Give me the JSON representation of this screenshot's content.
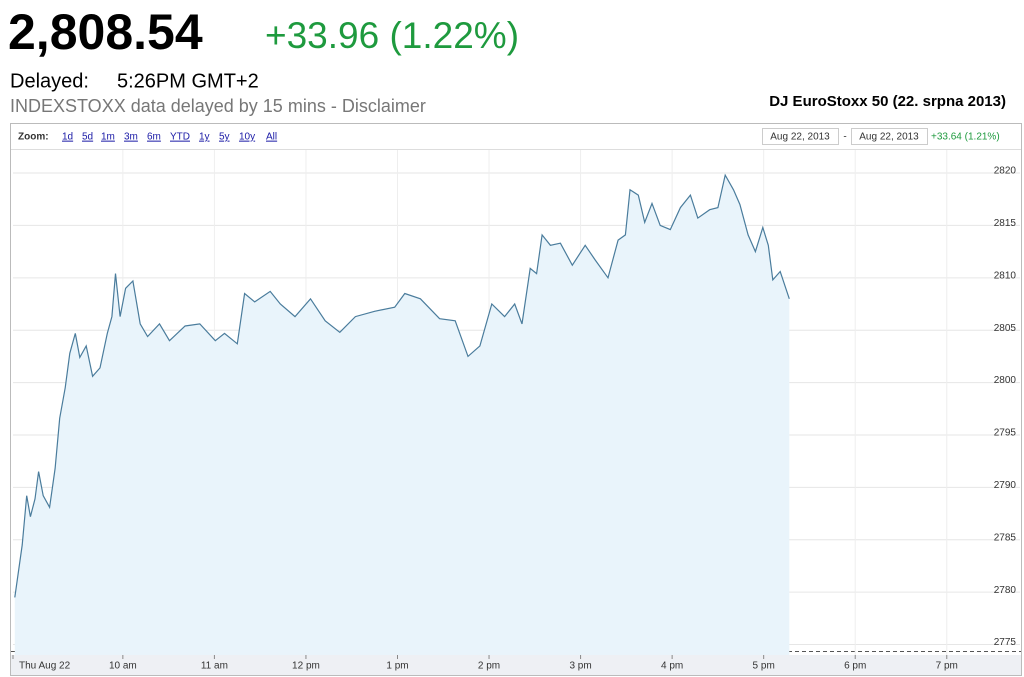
{
  "header": {
    "price": "2,808.54",
    "change": "+33.96 (1.22%)",
    "delayed_label": "Delayed:",
    "delayed_time": "5:26PM GMT+2",
    "note": "INDEXSTOXX data delayed by 15 mins - Disclaimer"
  },
  "toolbar": {
    "zoom_label": "Zoom:",
    "zoom_options": [
      "1d",
      "5d",
      "1m",
      "3m",
      "6m",
      "YTD",
      "1y",
      "5y",
      "10y",
      "All"
    ],
    "range_from": "Aug 22, 2013",
    "range_separator": "-",
    "range_to": "Aug 22, 2013",
    "range_change": "+33.64 (1.21%)"
  },
  "chart_data": {
    "type": "area",
    "title": "DJ EuroStoxx 50 (22. srpna 2013)",
    "color": "#4a7c9c",
    "fill": "#e9f4fb",
    "x": [
      8.82,
      8.9,
      8.95,
      8.99,
      9.04,
      9.08,
      9.13,
      9.2,
      9.26,
      9.31,
      9.37,
      9.42,
      9.48,
      9.53,
      9.6,
      9.67,
      9.75,
      9.83,
      9.88,
      9.92,
      9.97,
      10.03,
      10.11,
      10.19,
      10.27,
      10.4,
      10.51,
      10.68,
      10.84,
      11.01,
      11.11,
      11.25,
      11.33,
      11.44,
      11.61,
      11.72,
      11.88,
      12.05,
      12.21,
      12.37,
      12.54,
      12.75,
      12.97,
      13.08,
      13.25,
      13.46,
      13.63,
      13.77,
      13.9,
      14.03,
      14.17,
      14.28,
      14.36,
      14.45,
      14.52,
      14.58,
      14.67,
      14.78,
      14.91,
      15.05,
      15.16,
      15.3,
      15.41,
      15.49,
      15.54,
      15.63,
      15.7,
      15.78,
      15.87,
      15.98,
      16.09,
      16.2,
      16.28,
      16.41,
      16.5,
      16.58,
      16.67,
      16.74,
      16.83,
      16.91,
      16.99,
      17.05,
      17.1,
      17.18,
      17.28
    ],
    "values": [
      2779.5,
      2784.5,
      2789.2,
      2787.2,
      2788.9,
      2791.5,
      2789.2,
      2788.1,
      2791.8,
      2796.6,
      2799.5,
      2802.8,
      2804.7,
      2802.4,
      2803.5,
      2800.6,
      2801.4,
      2804.7,
      2806.3,
      2810.4,
      2806.3,
      2809.0,
      2809.7,
      2805.6,
      2804.4,
      2805.6,
      2804.0,
      2805.4,
      2805.6,
      2804.0,
      2804.7,
      2803.7,
      2808.5,
      2807.7,
      2808.7,
      2807.5,
      2806.3,
      2808.0,
      2805.9,
      2804.8,
      2806.3,
      2806.8,
      2807.2,
      2808.5,
      2808.0,
      2806.1,
      2805.9,
      2802.5,
      2803.5,
      2807.5,
      2806.3,
      2807.5,
      2805.6,
      2810.9,
      2810.4,
      2814.1,
      2813.1,
      2813.3,
      2811.2,
      2813.1,
      2811.7,
      2810.0,
      2813.6,
      2814.1,
      2818.4,
      2817.9,
      2815.3,
      2817.1,
      2815.0,
      2814.6,
      2816.7,
      2817.9,
      2815.7,
      2816.5,
      2816.7,
      2819.8,
      2818.4,
      2817.0,
      2814.1,
      2812.5,
      2814.8,
      2813.1,
      2809.8,
      2810.6,
      2808.0
    ],
    "xlim": [
      8.8,
      19.8
    ],
    "ylim": [
      2774,
      2822.2
    ],
    "xticks": [
      {
        "value": 8.8,
        "label": "Thu Aug 22"
      },
      {
        "value": 10,
        "label": "10 am"
      },
      {
        "value": 11,
        "label": "11 am"
      },
      {
        "value": 12,
        "label": "12 pm"
      },
      {
        "value": 13,
        "label": "1 pm"
      },
      {
        "value": 14,
        "label": "2 pm"
      },
      {
        "value": 15,
        "label": "3 pm"
      },
      {
        "value": 16,
        "label": "4 pm"
      },
      {
        "value": 17,
        "label": "5 pm"
      },
      {
        "value": 18,
        "label": "6 pm"
      },
      {
        "value": 19,
        "label": "7 pm"
      }
    ],
    "yticks": [
      2775,
      2780,
      2785,
      2790,
      2795,
      2800,
      2805,
      2810,
      2815,
      2820
    ],
    "grid": true
  }
}
